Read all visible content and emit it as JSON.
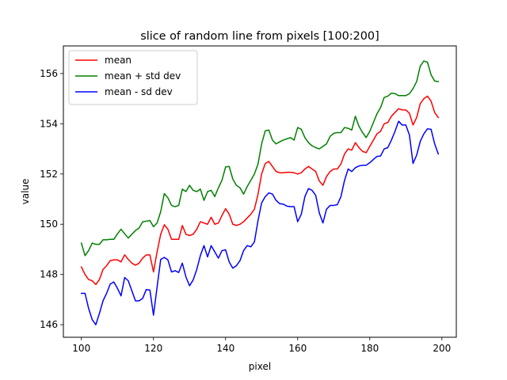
{
  "chart_data": {
    "type": "line",
    "title": "slice of random line from pixels [100:200]",
    "xlabel": "pixel",
    "ylabel": "value",
    "xlim": [
      95,
      204
    ],
    "ylim": [
      145.5,
      157.1
    ],
    "xticks": [
      100,
      120,
      140,
      160,
      180,
      200
    ],
    "yticks": [
      146,
      148,
      150,
      152,
      154,
      156
    ],
    "grid": false,
    "legend_position": "top-left",
    "x": [
      100,
      101,
      102,
      103,
      104,
      105,
      106,
      107,
      108,
      109,
      110,
      111,
      112,
      113,
      114,
      115,
      116,
      117,
      118,
      119,
      120,
      121,
      122,
      123,
      124,
      125,
      126,
      127,
      128,
      129,
      130,
      131,
      132,
      133,
      134,
      135,
      136,
      137,
      138,
      139,
      140,
      141,
      142,
      143,
      144,
      145,
      146,
      147,
      148,
      149,
      150,
      151,
      152,
      153,
      154,
      155,
      156,
      157,
      158,
      159,
      160,
      161,
      162,
      163,
      164,
      165,
      166,
      167,
      168,
      169,
      170,
      171,
      172,
      173,
      174,
      175,
      176,
      177,
      178,
      179,
      180,
      181,
      182,
      183,
      184,
      185,
      186,
      187,
      188,
      189,
      190,
      191,
      192,
      193,
      194,
      195,
      196,
      197,
      198,
      199
    ],
    "series": [
      {
        "name": "mean",
        "color": "#ff0000",
        "values": [
          148.3,
          148.0,
          147.8,
          147.75,
          147.6,
          147.8,
          148.2,
          148.35,
          148.55,
          148.58,
          148.58,
          148.5,
          148.78,
          148.6,
          148.45,
          148.37,
          148.45,
          148.65,
          148.78,
          148.78,
          148.1,
          148.9,
          149.6,
          149.98,
          149.8,
          149.4,
          149.4,
          149.4,
          149.95,
          149.6,
          149.55,
          149.6,
          149.8,
          150.1,
          150.05,
          150.0,
          150.28,
          150.0,
          150.05,
          150.35,
          150.62,
          150.4,
          150.0,
          149.95,
          150.0,
          150.1,
          150.25,
          150.4,
          150.6,
          151.2,
          152.0,
          152.42,
          152.5,
          152.3,
          152.1,
          152.05,
          152.05,
          152.07,
          152.07,
          152.05,
          152.0,
          152.05,
          152.2,
          152.3,
          152.2,
          152.1,
          151.72,
          151.55,
          151.9,
          152.1,
          152.2,
          152.2,
          152.4,
          152.8,
          153.0,
          152.95,
          153.25,
          153.05,
          152.9,
          152.85,
          153.1,
          153.35,
          153.6,
          153.7,
          154.0,
          154.05,
          154.3,
          154.45,
          154.6,
          154.55,
          154.55,
          154.42,
          153.95,
          154.25,
          154.8,
          155.0,
          155.1,
          154.9,
          154.45,
          154.25
        ]
      },
      {
        "name": "mean + std dev",
        "color": "#008000",
        "values": [
          149.25,
          148.75,
          148.95,
          149.25,
          149.2,
          149.2,
          149.38,
          149.38,
          149.4,
          149.4,
          149.62,
          149.8,
          149.62,
          149.45,
          149.6,
          149.75,
          149.85,
          150.1,
          150.12,
          150.15,
          149.9,
          150.05,
          150.5,
          151.22,
          151.05,
          150.75,
          150.7,
          150.75,
          151.4,
          151.3,
          151.55,
          151.35,
          151.3,
          151.4,
          150.95,
          151.3,
          151.35,
          151.1,
          151.45,
          151.75,
          152.28,
          152.3,
          151.8,
          151.55,
          151.45,
          151.2,
          151.5,
          151.75,
          152.0,
          152.4,
          153.2,
          153.72,
          153.75,
          153.35,
          153.2,
          153.28,
          153.35,
          153.4,
          153.45,
          153.35,
          153.85,
          153.78,
          153.45,
          153.25,
          153.12,
          153.05,
          153.0,
          153.1,
          153.2,
          153.5,
          153.62,
          153.65,
          153.65,
          153.85,
          153.82,
          153.75,
          154.3,
          153.9,
          153.65,
          153.45,
          153.7,
          154.05,
          154.4,
          154.65,
          155.05,
          155.1,
          155.22,
          155.2,
          155.12,
          155.12,
          155.12,
          155.2,
          155.4,
          155.68,
          156.3,
          156.5,
          156.45,
          155.95,
          155.7,
          155.68
        ]
      },
      {
        "name": "mean - sd dev",
        "color": "#0000ff",
        "values": [
          147.25,
          147.25,
          146.65,
          146.2,
          146.0,
          146.45,
          146.95,
          147.25,
          147.62,
          147.7,
          147.45,
          147.15,
          147.88,
          147.75,
          147.35,
          146.95,
          146.95,
          147.05,
          147.4,
          147.38,
          146.38,
          147.5,
          148.6,
          148.68,
          148.58,
          148.1,
          148.15,
          148.08,
          148.45,
          147.9,
          147.55,
          147.78,
          148.2,
          148.75,
          149.15,
          148.7,
          149.15,
          148.9,
          148.65,
          148.95,
          148.98,
          148.5,
          148.25,
          148.35,
          148.55,
          148.95,
          149.15,
          149.1,
          149.3,
          150.15,
          150.85,
          151.1,
          151.25,
          151.2,
          150.95,
          150.82,
          150.8,
          150.72,
          150.7,
          150.7,
          150.1,
          150.4,
          151.1,
          151.42,
          151.35,
          151.15,
          150.45,
          150.05,
          150.6,
          150.75,
          150.75,
          150.78,
          151.1,
          151.75,
          152.2,
          152.1,
          152.25,
          152.32,
          152.35,
          152.35,
          152.45,
          152.58,
          152.7,
          152.72,
          153.0,
          153.05,
          153.35,
          153.7,
          154.1,
          153.95,
          153.95,
          153.55,
          152.42,
          152.75,
          153.3,
          153.6,
          153.8,
          153.78,
          153.2,
          152.8
        ]
      }
    ]
  }
}
